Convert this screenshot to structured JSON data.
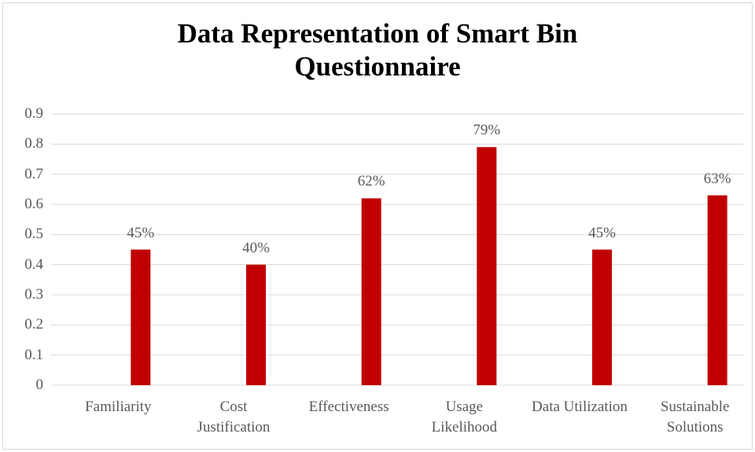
{
  "chart_data": {
    "type": "bar",
    "title": "Data Representation of Smart Bin Questionnaire",
    "categories": [
      "Familiarity",
      "Cost Justification",
      "Effectiveness",
      "Usage Likelihood",
      "Data Utilization",
      "Sustainable Solutions"
    ],
    "values": [
      0.45,
      0.4,
      0.62,
      0.79,
      0.45,
      0.63
    ],
    "value_labels": [
      "45%",
      "40%",
      "62%",
      "79%",
      "45%",
      "63%"
    ],
    "color": "#c00000",
    "ylim": [
      0,
      0.9
    ],
    "yticks": [
      0,
      0.1,
      0.2,
      0.3,
      0.4,
      0.5,
      0.6,
      0.7,
      0.8,
      0.9
    ],
    "grid": true
  }
}
